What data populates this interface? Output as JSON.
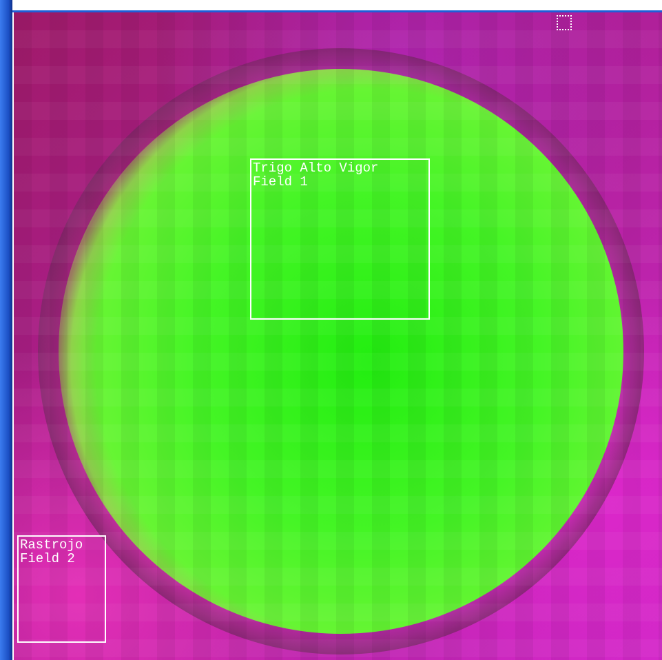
{
  "regions": [
    {
      "label": "Trigo Alto Vigor",
      "field": "Field 1"
    },
    {
      "label": "Rastrojo",
      "field": "Field 2"
    }
  ]
}
